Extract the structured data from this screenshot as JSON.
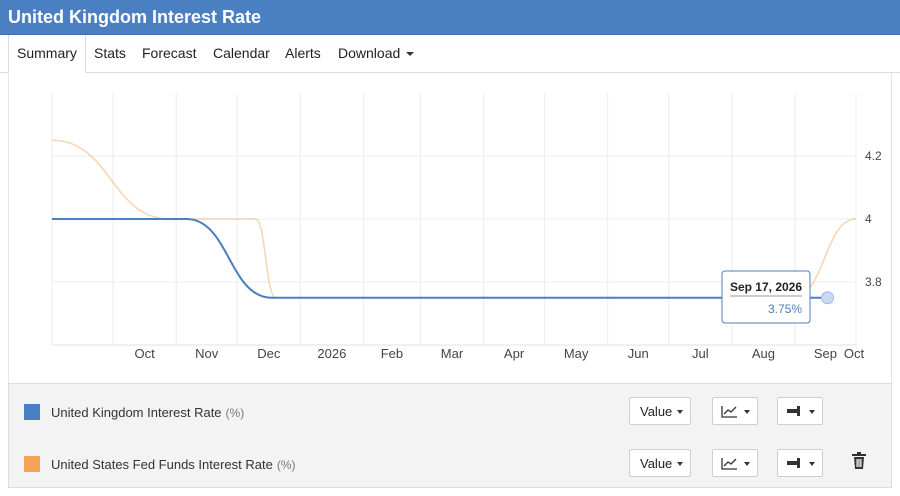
{
  "title": "United Kingdom Interest Rate",
  "tabs": [
    {
      "label": "Summary"
    },
    {
      "label": "Stats"
    },
    {
      "label": "Forecast"
    },
    {
      "label": "Calendar"
    },
    {
      "label": "Alerts"
    },
    {
      "label": "Download"
    }
  ],
  "tooltip": {
    "date": "Sep 17, 2026",
    "value": "3.75%"
  },
  "chart_data": {
    "type": "line",
    "x_ticks": [
      "Oct",
      "Nov",
      "Dec",
      "2026",
      "Feb",
      "Mar",
      "Apr",
      "May",
      "Jun",
      "Jul",
      "Aug",
      "Sep",
      "Oct"
    ],
    "y_ticks": [
      "4.2",
      "4",
      "3.8"
    ],
    "y_range": [
      3.6,
      4.4
    ],
    "legend_position": "bottom",
    "series": [
      {
        "name": "United Kingdom Interest Rate",
        "color": "#4a7fc1",
        "points": [
          [
            "2025-09-01",
            4.0
          ],
          [
            "2025-11-06",
            4.0
          ],
          [
            "2025-12-18",
            3.75
          ],
          [
            "2026-09-17",
            3.75
          ]
        ]
      },
      {
        "name": "United States Fed Funds Interest Rate",
        "color": "#f5a15a",
        "points": [
          [
            "2025-09-01",
            4.25
          ],
          [
            "2025-10-29",
            4.0
          ],
          [
            "2025-12-10",
            4.0
          ],
          [
            "2025-12-20",
            3.75
          ],
          [
            "2026-08-31",
            3.75
          ],
          [
            "2026-10-01",
            4.0
          ]
        ]
      }
    ]
  },
  "legend": [
    {
      "name": "United Kingdom Interest Rate",
      "unit": "(%)",
      "color": "#4a7fc1",
      "value_label": "Value"
    },
    {
      "name": "United States Fed Funds Interest Rate",
      "unit": "(%)",
      "color": "#f5a15a",
      "value_label": "Value"
    }
  ]
}
